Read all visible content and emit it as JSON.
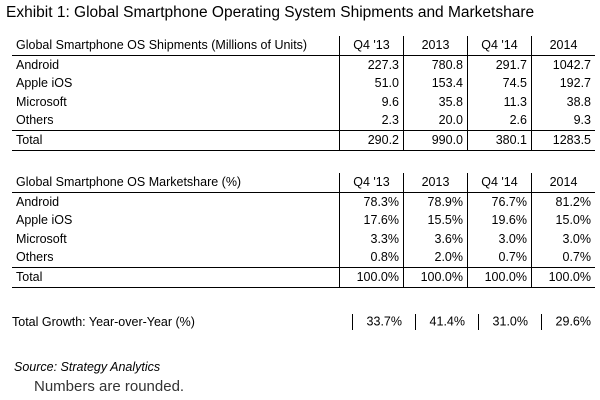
{
  "title": "Exhibit 1: Global Smartphone Operating System Shipments and Marketshare",
  "shipments": {
    "header": "Global Smartphone OS Shipments (Millions of Units)",
    "columns": [
      "Q4 '13",
      "2013",
      "Q4 '14",
      "2014"
    ],
    "rows": [
      {
        "label": "Android",
        "values": [
          "227.3",
          "780.8",
          "291.7",
          "1042.7"
        ]
      },
      {
        "label": "Apple iOS",
        "values": [
          "51.0",
          "153.4",
          "74.5",
          "192.7"
        ]
      },
      {
        "label": "Microsoft",
        "values": [
          "9.6",
          "35.8",
          "11.3",
          "38.8"
        ]
      },
      {
        "label": "Others",
        "values": [
          "2.3",
          "20.0",
          "2.6",
          "9.3"
        ]
      }
    ],
    "total": {
      "label": "Total",
      "values": [
        "290.2",
        "990.0",
        "380.1",
        "1283.5"
      ]
    }
  },
  "marketshare": {
    "header": "Global Smartphone OS Marketshare (%)",
    "columns": [
      "Q4 '13",
      "2013",
      "Q4 '14",
      "2014"
    ],
    "rows": [
      {
        "label": "Android",
        "values": [
          "78.3%",
          "78.9%",
          "76.7%",
          "81.2%"
        ]
      },
      {
        "label": "Apple iOS",
        "values": [
          "17.6%",
          "15.5%",
          "19.6%",
          "15.0%"
        ]
      },
      {
        "label": "Microsoft",
        "values": [
          "3.3%",
          "3.6%",
          "3.0%",
          "3.0%"
        ]
      },
      {
        "label": "Others",
        "values": [
          "0.8%",
          "2.0%",
          "0.7%",
          "0.7%"
        ]
      }
    ],
    "total": {
      "label": "Total",
      "values": [
        "100.0%",
        "100.0%",
        "100.0%",
        "100.0%"
      ]
    }
  },
  "growth": {
    "label": "Total Growth: Year-over-Year (%)",
    "values": [
      "33.7%",
      "41.4%",
      "31.0%",
      "29.6%"
    ]
  },
  "source": "Source: Strategy Analytics",
  "note": "Numbers are rounded."
}
